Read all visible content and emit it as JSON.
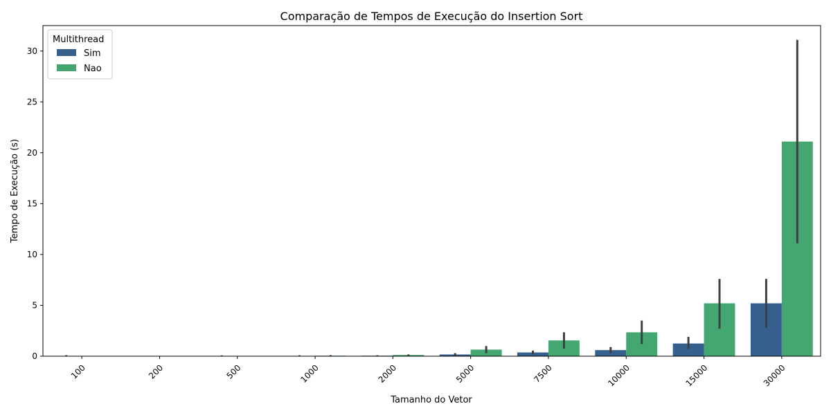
{
  "chart_data": {
    "type": "bar",
    "title": "Comparação de Tempos de Execução do Insertion Sort",
    "xlabel": "Tamanho do Vetor",
    "ylabel": "Tempo de Execução (s)",
    "categories": [
      "100",
      "200",
      "500",
      "1000",
      "2000",
      "5000",
      "7500",
      "10000",
      "15000",
      "30000"
    ],
    "ylim": [
      0,
      32.5
    ],
    "yticks": [
      0,
      5,
      10,
      15,
      20,
      25,
      30
    ],
    "grid": false,
    "legend": {
      "title": "Multithread",
      "placement": "top-left"
    },
    "series": [
      {
        "name": "Sim",
        "color": "#355f8d",
        "values": [
          0.001,
          0.002,
          0.004,
          0.015,
          0.05,
          0.17,
          0.37,
          0.6,
          1.25,
          5.2
        ],
        "err_low": [
          0.0,
          0.0,
          0.0,
          0.005,
          0.03,
          0.05,
          0.18,
          0.3,
          0.7,
          2.8
        ],
        "err_high": [
          0.1,
          0.02,
          0.08,
          0.09,
          0.09,
          0.3,
          0.55,
          0.9,
          1.9,
          7.6
        ]
      },
      {
        "name": "Nao",
        "color": "#44a772",
        "values": [
          0.002,
          0.003,
          0.006,
          0.05,
          0.12,
          0.65,
          1.55,
          2.35,
          5.2,
          21.1
        ],
        "err_low": [
          0.0,
          0.0,
          0.0,
          0.02,
          0.05,
          0.3,
          0.75,
          1.2,
          2.7,
          11.1
        ],
        "err_high": [
          0.01,
          0.01,
          0.02,
          0.1,
          0.18,
          1.0,
          2.35,
          3.5,
          7.6,
          31.1
        ]
      }
    ]
  }
}
